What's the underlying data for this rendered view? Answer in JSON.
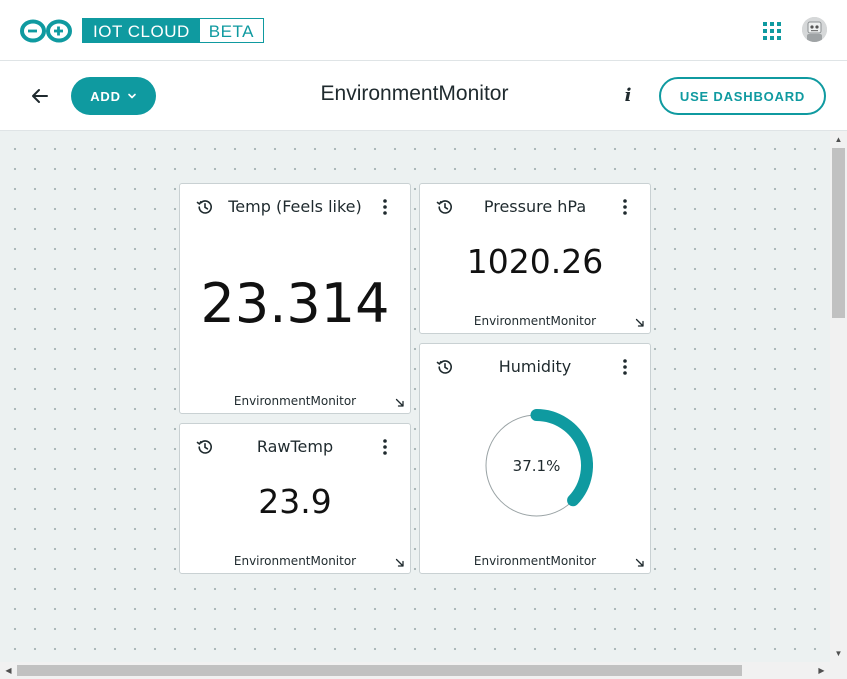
{
  "header": {
    "brand_main": "IOT CLOUD",
    "brand_tag": "BETA",
    "logo_icon": "arduino-infinity-logo",
    "apps_icon": "apps-grid-icon",
    "avatar_icon": "user-avatar"
  },
  "toolbar": {
    "back_icon": "arrow-left-icon",
    "add_label": "ADD",
    "dashboard_title": "EnvironmentMonitor",
    "info_label": "i",
    "use_dashboard_label": "USE DASHBOARD"
  },
  "widgets": [
    {
      "type": "value",
      "title": "Temp (Feels like)",
      "value": "23.314",
      "thing": "EnvironmentMonitor"
    },
    {
      "type": "value",
      "title": "Pressure hPa",
      "value": "1020.26",
      "thing": "EnvironmentMonitor"
    },
    {
      "type": "value",
      "title": "RawTemp",
      "value": "23.9",
      "thing": "EnvironmentMonitor"
    },
    {
      "type": "percentage",
      "title": "Humidity",
      "value": "37.1%",
      "percent": 37.1,
      "thing": "EnvironmentMonitor"
    }
  ],
  "colors": {
    "accent": "#0f9aa0",
    "canvas_bg": "#ecf1f1",
    "widget_border": "#c9d1d3"
  }
}
